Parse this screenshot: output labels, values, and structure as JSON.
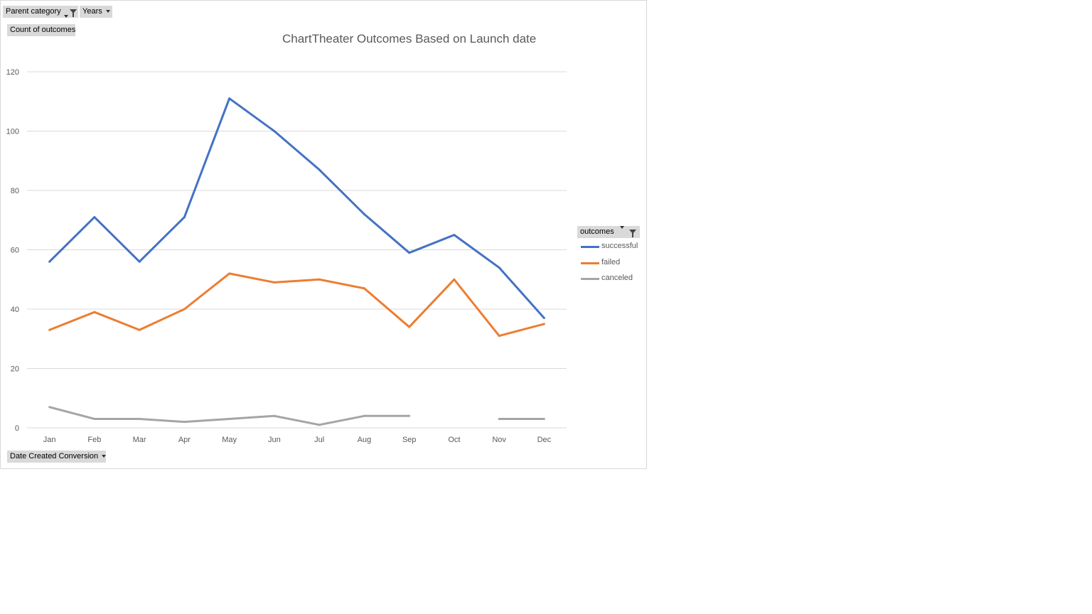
{
  "filters": {
    "parent_category": "Parent category",
    "years": "Years",
    "values_field": "Count of outcomes",
    "axis_field": "Date Created Conversion",
    "legend_field": "outcomes"
  },
  "chart_data": {
    "type": "line",
    "title": "ChartTheater Outcomes Based on Launch date",
    "xlabel": "",
    "ylabel": "",
    "categories": [
      "Jan",
      "Feb",
      "Mar",
      "Apr",
      "May",
      "Jun",
      "Jul",
      "Aug",
      "Sep",
      "Oct",
      "Nov",
      "Dec"
    ],
    "ylim": [
      0,
      120
    ],
    "yticks": [
      0,
      20,
      40,
      60,
      80,
      100,
      120
    ],
    "grid": true,
    "legend_position": "right",
    "series": [
      {
        "name": "successful",
        "color": "#4472c4",
        "values": [
          56,
          71,
          56,
          71,
          111,
          100,
          87,
          72,
          59,
          65,
          54,
          37
        ]
      },
      {
        "name": "failed",
        "color": "#ed7d31",
        "values": [
          33,
          39,
          33,
          40,
          52,
          49,
          50,
          47,
          34,
          50,
          31,
          35
        ]
      },
      {
        "name": "canceled",
        "color": "#a5a5a5",
        "values": [
          7,
          3,
          3,
          2,
          3,
          4,
          1,
          4,
          4,
          null,
          3,
          3
        ]
      }
    ]
  }
}
